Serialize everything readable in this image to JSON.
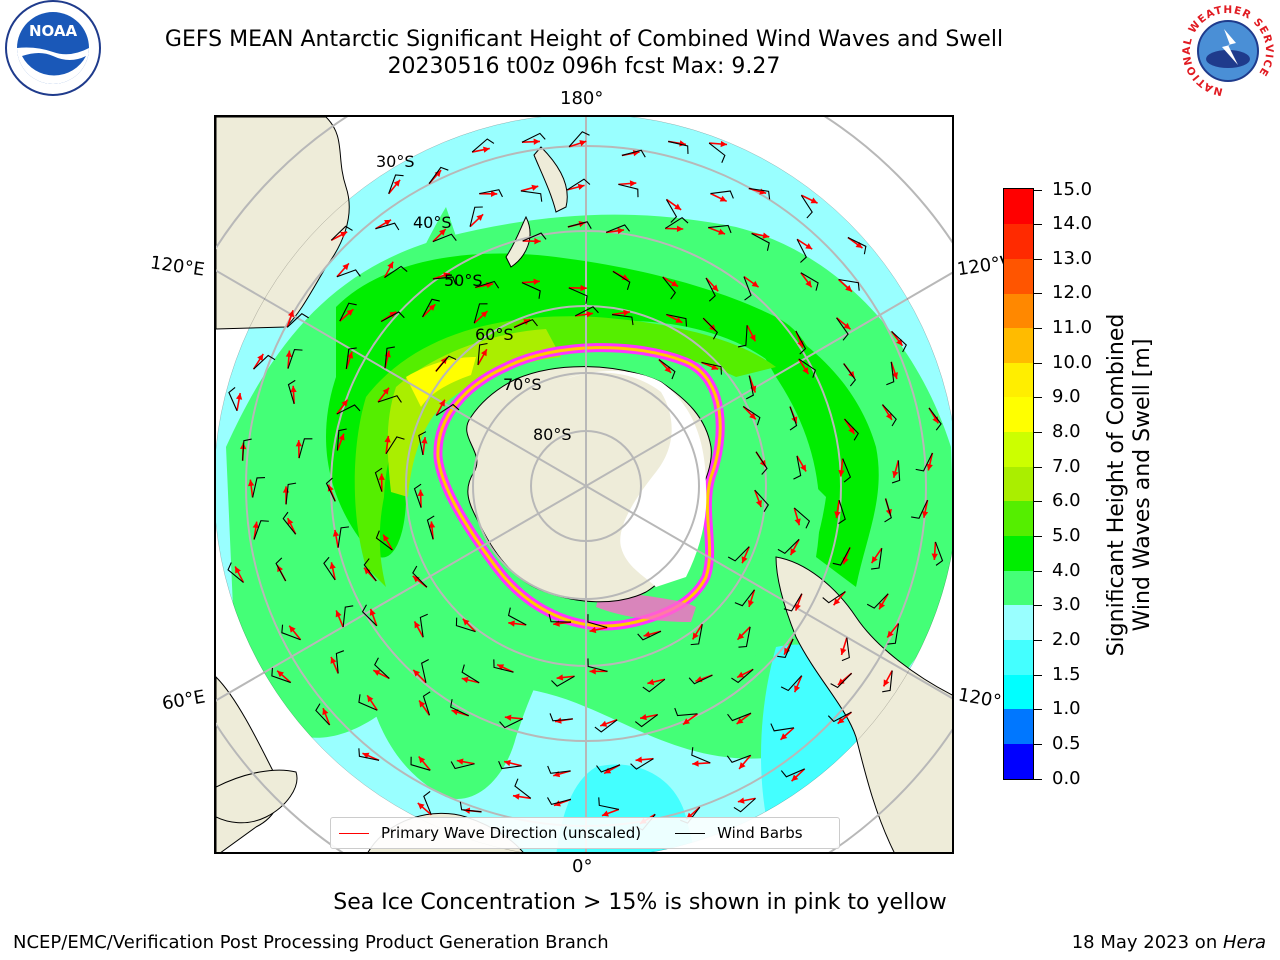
{
  "header": {
    "title_line1": "GEFS MEAN Antarctic Significant Height of Combined Wind Waves and Swell",
    "title_line2": "20230516 t00z 096h fcst   Max: 9.27"
  },
  "logos": {
    "left": "NOAA",
    "right_ring": "NATIONAL WEATHER SERVICE"
  },
  "map": {
    "projection": "south-polar-stereographic",
    "longitude_labels": {
      "top": "180°",
      "bottom": "0°",
      "upper_left": "120°E",
      "upper_right": "120°W",
      "lower_left": "60°E",
      "lower_right": "60°W"
    },
    "latitude_labels": [
      "30°S",
      "40°S",
      "50°S",
      "60°S",
      "70°S",
      "80°S"
    ],
    "land_color": "#eeecd9",
    "ice_edge_colors": [
      "#ff33ff",
      "#ffcc00"
    ]
  },
  "legend": {
    "wave_direction": {
      "label": "Primary Wave Direction (unscaled)",
      "color": "#ff0000"
    },
    "wind_barbs": {
      "label": "Wind Barbs",
      "color": "#000000"
    }
  },
  "colorbar": {
    "title_line1": "Significant Height of Combined",
    "title_line2": "Wind Waves and Swell [m]",
    "tick_labels": [
      "0.0",
      "0.5",
      "1.0",
      "1.5",
      "2.0",
      "3.0",
      "4.0",
      "5.0",
      "6.0",
      "7.0",
      "8.0",
      "9.0",
      "10.0",
      "11.0",
      "12.0",
      "13.0",
      "14.0",
      "15.0"
    ],
    "colors": [
      "#0000ff",
      "#0077ff",
      "#00ffff",
      "#44ffff",
      "#99ffff",
      "#44ff77",
      "#00ee00",
      "#55ee00",
      "#aaee00",
      "#ccff00",
      "#ffff00",
      "#ffee00",
      "#ffbb00",
      "#ff8800",
      "#ff5500",
      "#ff2a00",
      "#ff0000"
    ]
  },
  "footer": {
    "note": "Sea Ice Concentration > 15% is shown in pink to yellow",
    "left": "NCEP/EMC/Verification Post Processing Product Generation Branch",
    "right_date": "18 May 2023 on ",
    "right_host": "Hera"
  }
}
